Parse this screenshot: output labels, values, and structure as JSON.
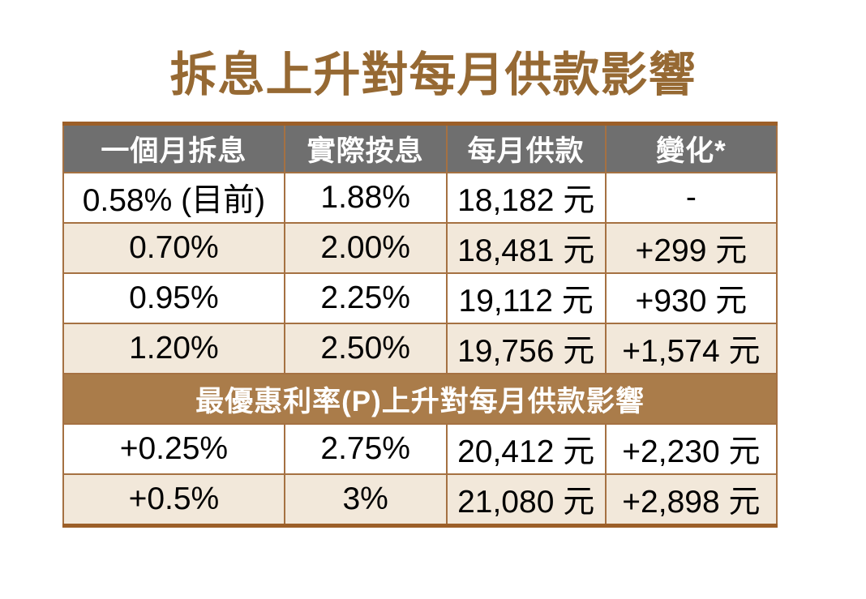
{
  "title": "拆息上升對每月供款影響",
  "colors": {
    "title_brown": "#966933",
    "header_gray": "#6f6f6f",
    "row_beige": "#f2e8da",
    "section_band_brown": "#aa7c4a",
    "rule_thin_brown": "#a57142",
    "rule_thick_brown": "#9c5f28",
    "text_black": "#000000",
    "text_white": "#ffffff"
  },
  "chart_data": {
    "type": "table",
    "title": "拆息上升對每月供款影響",
    "columns": [
      "一個月拆息",
      "實際按息",
      "每月供款",
      "變化*"
    ],
    "rows": [
      [
        "0.58% (目前)",
        "1.88%",
        "18,182 元",
        "-"
      ],
      [
        "0.70%",
        "2.00%",
        "18,481 元",
        "+299 元"
      ],
      [
        "0.95%",
        "2.25%",
        "19,112 元",
        "+930 元"
      ],
      [
        "1.20%",
        "2.50%",
        "19,756 元",
        "+1,574 元"
      ]
    ],
    "section_header": "最優惠利率(P)上升對每月供款影響",
    "rows_after_section": [
      [
        "+0.25%",
        "2.75%",
        "20,412 元",
        "+2,230 元"
      ],
      [
        "+0.5%",
        "3%",
        "21,080 元",
        "+2,898 元"
      ]
    ],
    "layout_hints": {
      "row_striping": [
        "white",
        "beige",
        "white",
        "beige"
      ],
      "rows_after_section_striping": [
        "white",
        "beige"
      ],
      "header_style": "gray-bar-white-text",
      "section_header_style": "brown-band-white-text-colspan-4"
    }
  }
}
